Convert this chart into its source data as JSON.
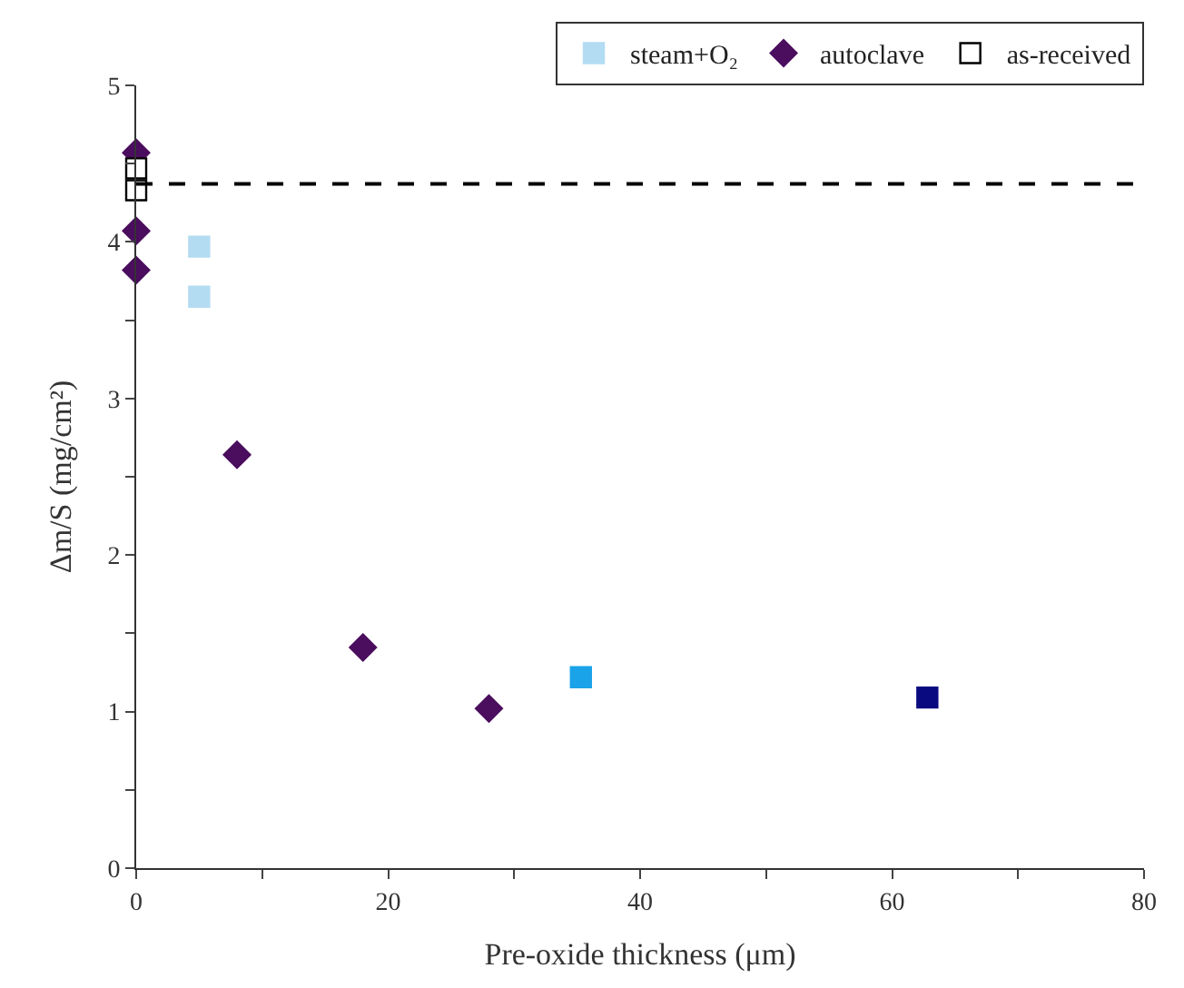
{
  "chart_data": {
    "type": "scatter",
    "xlabel": "Pre-oxide thickness (μm)",
    "ylabel": "Δm/S (mg/cm²)",
    "xlim": [
      0,
      80
    ],
    "xticks": [
      0,
      {
        "value": 10,
        "label": null
      },
      20,
      {
        "value": 30,
        "label": null
      },
      40,
      {
        "value": 50,
        "label": null
      },
      60,
      {
        "value": 70,
        "label": null
      },
      80
    ],
    "ylim": [
      0,
      5
    ],
    "yticks": [
      0,
      {
        "value": 0.5,
        "label": null
      },
      1,
      {
        "value": 1.5,
        "label": null
      },
      2,
      {
        "value": 2.5,
        "label": null
      },
      3,
      {
        "value": 3.5,
        "label": null
      },
      4,
      {
        "value": 4.5,
        "label": null
      },
      5
    ],
    "legend": "top right",
    "ref_lines": [
      {
        "axis": "y",
        "value": 4.37,
        "color": "#000000",
        "line_style": "dashed"
      }
    ],
    "series": [
      {
        "name": "steam+O₂",
        "marker": "square",
        "colors": [
          "#b3dcf2",
          "#b3dcf2",
          "#1aa3e8",
          "#0a0a80"
        ],
        "x": [
          5,
          5,
          35.3,
          62.8
        ],
        "values": [
          3.97,
          3.65,
          1.22,
          1.09
        ]
      },
      {
        "name": "autoclave",
        "marker": "diamond",
        "color": "#4b0d5e",
        "x": [
          0,
          0,
          0,
          8,
          18,
          28
        ],
        "values": [
          4.57,
          4.07,
          3.82,
          2.64,
          1.41,
          1.02
        ]
      },
      {
        "name": "as-received",
        "marker": "square",
        "color": "#ffffff",
        "x": [
          0,
          0
        ],
        "values": [
          4.47,
          4.33
        ]
      }
    ]
  }
}
